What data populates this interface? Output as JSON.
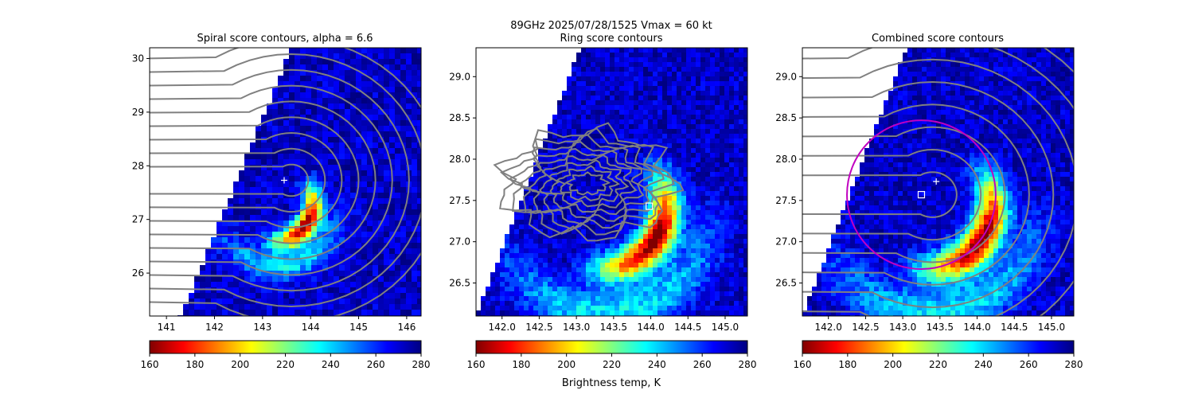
{
  "figure": {
    "suptitle_line1": "89GHz  2025/07/28/1525    Vmax = 60 kt",
    "colorbar_label": "Brightness temp, K"
  },
  "colormap": {
    "name": "jet-reversed",
    "vmin": 160,
    "vmax": 280,
    "stops": [
      "#800000",
      "#ff0000",
      "#ff8000",
      "#ffff00",
      "#80ff80",
      "#00ffff",
      "#0080ff",
      "#0000ff",
      "#000080"
    ],
    "ticks": [
      "160",
      "180",
      "200",
      "220",
      "240",
      "260",
      "280"
    ]
  },
  "colors": {
    "contour": "#808080",
    "ring": "#c000c0",
    "center_marker": "#ffffff",
    "no_data": "#ffffff"
  },
  "chart_data": [
    {
      "type": "heatmap",
      "title": "Spiral score contours, alpha =  6.6",
      "xlim": [
        140.65,
        146.3
      ],
      "ylim": [
        25.2,
        30.2
      ],
      "xticks": [
        "141",
        "142",
        "143",
        "144",
        "145",
        "146"
      ],
      "yticks": [
        "26",
        "27",
        "28",
        "29",
        "30"
      ],
      "contours": "spiral score",
      "center_plus": [
        143.45,
        27.73
      ],
      "swath_edge": [
        [
          141.3,
          25.2
        ],
        [
          143.6,
          30.2
        ]
      ],
      "swath_side": "right",
      "rainband_center": [
        143.3,
        27.3
      ],
      "rainband_radius": 0.75,
      "colorbar_ticks": [
        "160",
        "180",
        "200",
        "220",
        "240",
        "260",
        "280"
      ]
    },
    {
      "type": "heatmap",
      "title": "Ring score contours",
      "xlim": [
        141.65,
        145.3
      ],
      "ylim": [
        26.1,
        29.35
      ],
      "xticks": [
        "142.0",
        "142.5",
        "143.0",
        "143.5",
        "144.0",
        "144.5",
        "145.0"
      ],
      "yticks": [
        "26.5",
        "27.0",
        "27.5",
        "28.0",
        "28.5",
        "29.0"
      ],
      "contours": "ring score",
      "center_square": [
        143.98,
        27.43
      ],
      "swath_edge": [
        [
          141.65,
          26.1
        ],
        [
          143.05,
          29.35
        ]
      ],
      "swath_side": "right",
      "rainband_center": [
        143.35,
        27.45
      ],
      "rainband_radius": 0.85,
      "colorbar_ticks": [
        "160",
        "180",
        "200",
        "220",
        "240",
        "260",
        "280"
      ]
    },
    {
      "type": "heatmap",
      "title": "Combined score contours",
      "xlim": [
        141.65,
        145.3
      ],
      "ylim": [
        26.1,
        29.35
      ],
      "xticks": [
        "142.0",
        "142.5",
        "143.0",
        "143.5",
        "144.0",
        "144.5",
        "145.0"
      ],
      "yticks": [
        "26.5",
        "27.0",
        "27.5",
        "28.0",
        "28.5",
        "29.0"
      ],
      "contours": "combined score",
      "center_plus": [
        143.45,
        27.73
      ],
      "center_square": [
        143.25,
        27.57
      ],
      "ring": {
        "center": [
          143.25,
          27.57
        ],
        "radius_deg": 1.0
      },
      "swath_edge": [
        [
          141.65,
          26.1
        ],
        [
          143.05,
          29.35
        ]
      ],
      "swath_side": "right",
      "rainband_center": [
        143.35,
        27.45
      ],
      "rainband_radius": 0.85,
      "colorbar_ticks": [
        "160",
        "180",
        "200",
        "220",
        "240",
        "260",
        "280"
      ]
    }
  ]
}
